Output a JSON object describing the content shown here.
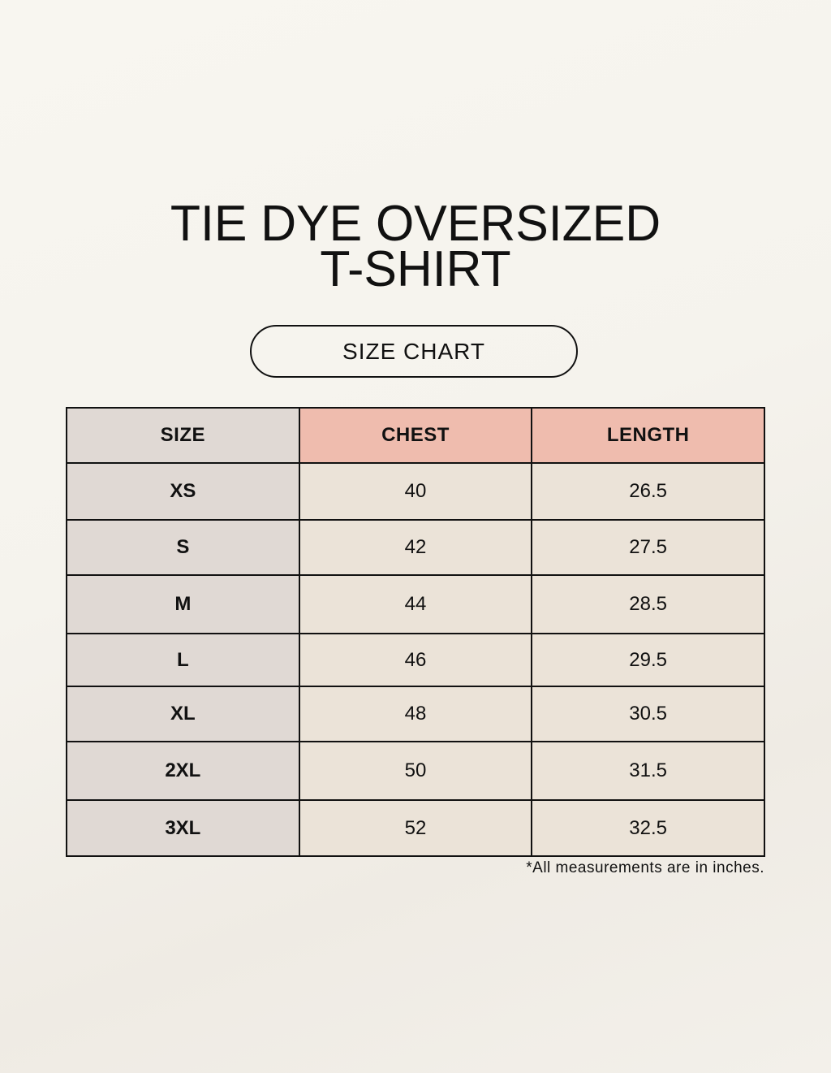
{
  "title_line1": "TIE DYE OVERSIZED",
  "title_line2": "T-SHIRT",
  "subtitle": "SIZE CHART",
  "table": {
    "headers": [
      "SIZE",
      "CHEST",
      "LENGTH"
    ],
    "rows": [
      [
        "XS",
        "40",
        "26.5"
      ],
      [
        "S",
        "42",
        "27.5"
      ],
      [
        "M",
        "44",
        "28.5"
      ],
      [
        "L",
        "46",
        "29.5"
      ],
      [
        "XL",
        "48",
        "30.5"
      ],
      [
        "2XL",
        "50",
        "31.5"
      ],
      [
        "3XL",
        "52",
        "32.5"
      ]
    ]
  },
  "note": "*All measurements are in inches.",
  "colors": {
    "header_accent": "#efbcae",
    "size_column": "#e0d9d4",
    "cell": "#ebe3d8"
  }
}
